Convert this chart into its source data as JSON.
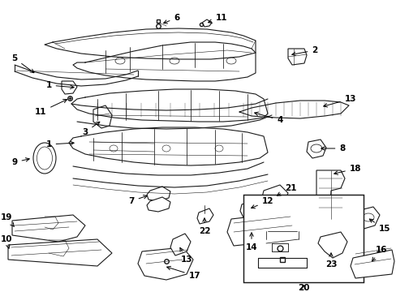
{
  "bg_color": "#ffffff",
  "line_color": "#1a1a1a",
  "fig_width": 4.89,
  "fig_height": 3.6,
  "dpi": 100,
  "font_size": 7.5,
  "lw": 0.8
}
